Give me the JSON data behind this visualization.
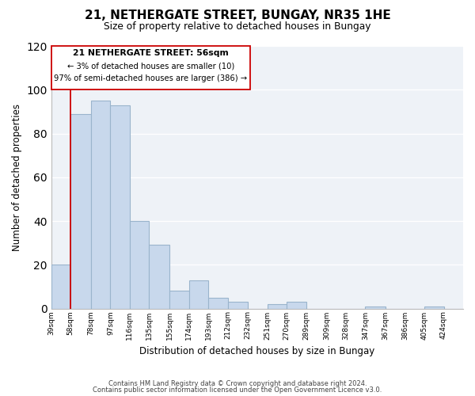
{
  "title": "21, NETHERGATE STREET, BUNGAY, NR35 1HE",
  "subtitle": "Size of property relative to detached houses in Bungay",
  "xlabel": "Distribution of detached houses by size in Bungay",
  "ylabel": "Number of detached properties",
  "bar_color": "#c8d8ec",
  "bar_edge_color": "#9ab4cc",
  "highlight_line_color": "#cc0000",
  "categories": [
    "39sqm",
    "58sqm",
    "78sqm",
    "97sqm",
    "116sqm",
    "135sqm",
    "155sqm",
    "174sqm",
    "193sqm",
    "212sqm",
    "232sqm",
    "251sqm",
    "270sqm",
    "289sqm",
    "309sqm",
    "328sqm",
    "347sqm",
    "367sqm",
    "386sqm",
    "405sqm",
    "424sqm"
  ],
  "bin_edges": [
    39,
    58,
    78,
    97,
    116,
    135,
    155,
    174,
    193,
    212,
    232,
    251,
    270,
    289,
    309,
    328,
    347,
    367,
    386,
    405,
    424,
    443
  ],
  "values": [
    20,
    89,
    95,
    93,
    40,
    29,
    8,
    13,
    5,
    3,
    0,
    2,
    3,
    0,
    0,
    0,
    1,
    0,
    0,
    1,
    0
  ],
  "ylim": [
    0,
    120
  ],
  "yticks": [
    0,
    20,
    40,
    60,
    80,
    100,
    120
  ],
  "annotation_title": "21 NETHERGATE STREET: 56sqm",
  "annotation_line1": "← 3% of detached houses are smaller (10)",
  "annotation_line2": "97% of semi-detached houses are larger (386) →",
  "footer1": "Contains HM Land Registry data © Crown copyright and database right 2024.",
  "footer2": "Contains public sector information licensed under the Open Government Licence v3.0.",
  "bg_color": "#ffffff",
  "plot_bg_color": "#eef2f7"
}
